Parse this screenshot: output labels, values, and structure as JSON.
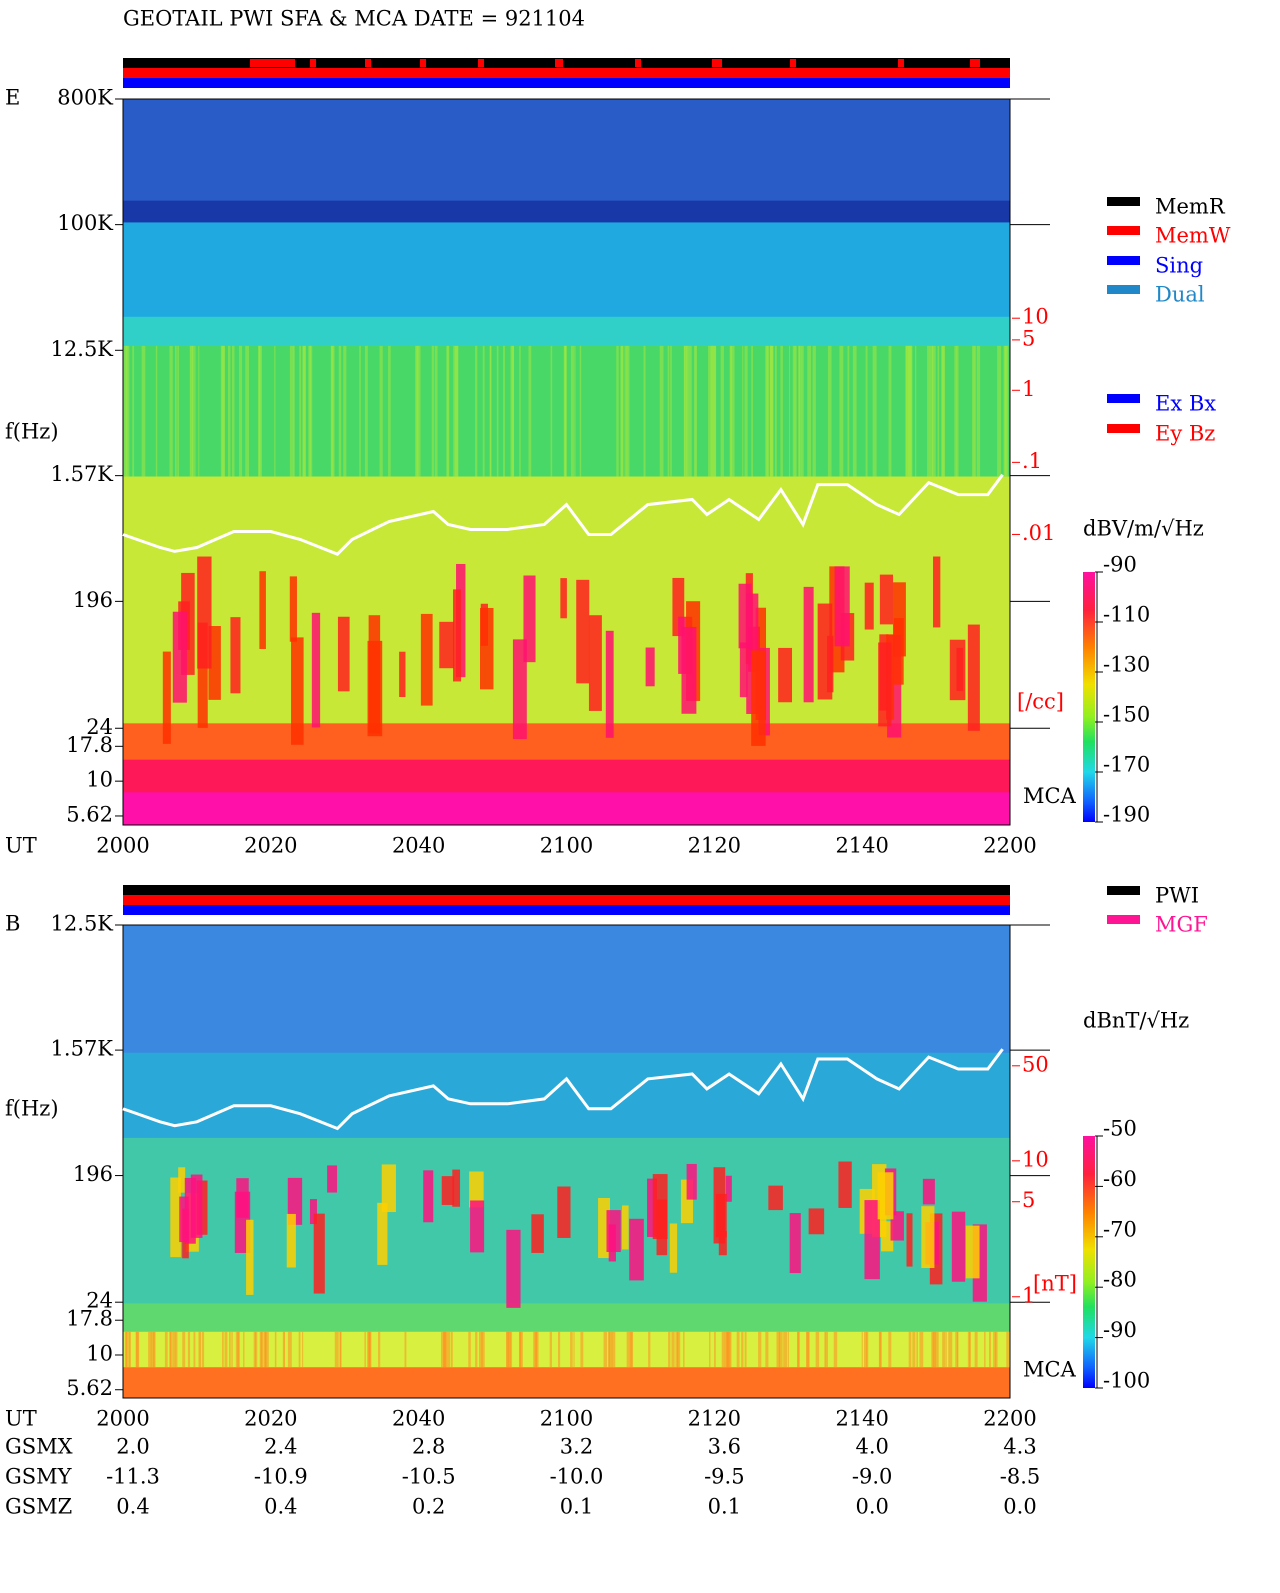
{
  "header": {
    "title": "GEOTAIL  PWI SFA & MCA   DATE = 921104"
  },
  "chart_data": [
    {
      "type": "spectrogram",
      "panel_label": "E",
      "ylabel": "f(Hz)",
      "xlabel": "UT",
      "categories": [
        "2000",
        "2020",
        "2040",
        "2100",
        "2120",
        "2140",
        "2200"
      ],
      "log_y": true,
      "ylim": [
        4.84,
        800000
      ],
      "yticks": [
        {
          "value": 800000,
          "label": "800K"
        },
        {
          "value": 100000,
          "label": "100K"
        },
        {
          "value": 12500,
          "label": "12.5K"
        },
        {
          "value": 1570,
          "label": "1.57K"
        },
        196,
        24,
        17.8,
        10,
        5.62
      ],
      "mca_label": "MCA",
      "y2label": "[/cc]",
      "y2color": "#ff0000",
      "y2log": true,
      "y2lim": [
        9.3e-07,
        11000
      ],
      "y2ticks": [
        10,
        5,
        1,
        {
          "value": 0.1,
          "label": ".1"
        },
        {
          "value": 0.01,
          "label": ".01"
        }
      ],
      "colorbar": {
        "label": "dBV/m/√Hz",
        "lim": [
          -190,
          -90
        ],
        "ticks": [
          -90,
          -110,
          -130,
          -150,
          -170,
          -190
        ]
      },
      "legend": [
        {
          "name": "MemR",
          "color": "#000000"
        },
        {
          "name": "MemW",
          "color": "#ff0000"
        },
        {
          "name": "Sing",
          "color": "#0000ff"
        },
        {
          "name": "Dual",
          "color": "#2088c8"
        }
      ],
      "legend2": [
        {
          "name": "Ex Bx",
          "color": "#0000ff"
        },
        {
          "name": "Ey Bz",
          "color": "#ff0000"
        }
      ],
      "line": {
        "color": "#ffffff",
        "x": [
          "2000",
          "2005",
          "2007",
          "2010",
          "2015",
          "2020",
          "2024",
          "2029",
          "2031",
          "2036",
          "2042",
          "2044",
          "2047",
          "2052",
          "2057",
          "2100",
          "2103",
          "2106",
          "2111",
          "2117",
          "2119",
          "2122",
          "2126",
          "2129",
          "2132",
          "2134",
          "2138",
          "2142",
          "2145",
          "2149",
          "2153",
          "2157",
          "2159"
        ],
        "values": [
          593,
          478,
          448,
          478,
          623,
          623,
          546,
          428,
          546,
          735,
          867,
          699,
          644,
          644,
          699,
          973,
          593,
          593,
          973,
          1057,
          825,
          1057,
          760,
          1247,
          699,
          1354,
          1354,
          973,
          825,
          1399,
          1148,
          1148,
          1596
        ]
      }
    },
    {
      "type": "spectrogram",
      "panel_label": "B",
      "ylabel": "f(Hz)",
      "xlabel": "UT",
      "categories": [
        "2000",
        "2020",
        "2040",
        "2100",
        "2120",
        "2140",
        "2200"
      ],
      "log_y": true,
      "ylim": [
        4.9,
        12500
      ],
      "yticks": [
        {
          "value": 12500,
          "label": "12.5K"
        },
        {
          "value": 1570,
          "label": "1.57K"
        },
        196,
        24,
        17.8,
        10,
        5.62
      ],
      "mca_label": "MCA",
      "y2label": "[nT]",
      "y2color": "#ff0000",
      "y2log": true,
      "y2lim": [
        0.18,
        543
      ],
      "y2ticks": [
        50,
        10,
        5,
        1
      ],
      "colorbar": {
        "label": "dBnT/√Hz",
        "lim": [
          -100,
          -50
        ],
        "ticks": [
          -50,
          -60,
          -70,
          -80,
          -90,
          -100
        ]
      },
      "legend": [
        {
          "name": "PWI",
          "color": "#000000"
        },
        {
          "name": "MGF",
          "color": "#ff1493"
        }
      ],
      "line": {
        "color": "#ffffff",
        "x": [
          "2000",
          "2005",
          "2007",
          "2010",
          "2015",
          "2020",
          "2024",
          "2029",
          "2031",
          "2036",
          "2042",
          "2044",
          "2047",
          "2052",
          "2057",
          "2100",
          "2103",
          "2106",
          "2111",
          "2117",
          "2119",
          "2122",
          "2126",
          "2129",
          "2132",
          "2134",
          "2138",
          "2142",
          "2145",
          "2149",
          "2153",
          "2157",
          "2159"
        ],
        "values": [
          593,
          478,
          448,
          478,
          623,
          623,
          546,
          428,
          546,
          735,
          867,
          699,
          644,
          644,
          699,
          973,
          593,
          593,
          973,
          1057,
          825,
          1057,
          760,
          1247,
          699,
          1354,
          1354,
          973,
          825,
          1399,
          1148,
          1148,
          1596
        ]
      }
    }
  ],
  "orbit": {
    "xlabel": "UT",
    "rows": [
      {
        "label": "GSMX",
        "values": [
          "2.0",
          "2.4",
          "2.8",
          "3.2",
          "3.6",
          "4.0",
          "4.3"
        ]
      },
      {
        "label": "GSMY",
        "values": [
          "-11.3",
          "-10.9",
          "-10.5",
          "-10.0",
          "-9.5",
          "-9.0",
          "-8.5"
        ]
      },
      {
        "label": "GSMZ",
        "values": [
          "0.4",
          "0.4",
          "0.2",
          "0.1",
          "0.1",
          "0.0",
          "0.0"
        ]
      }
    ]
  }
}
